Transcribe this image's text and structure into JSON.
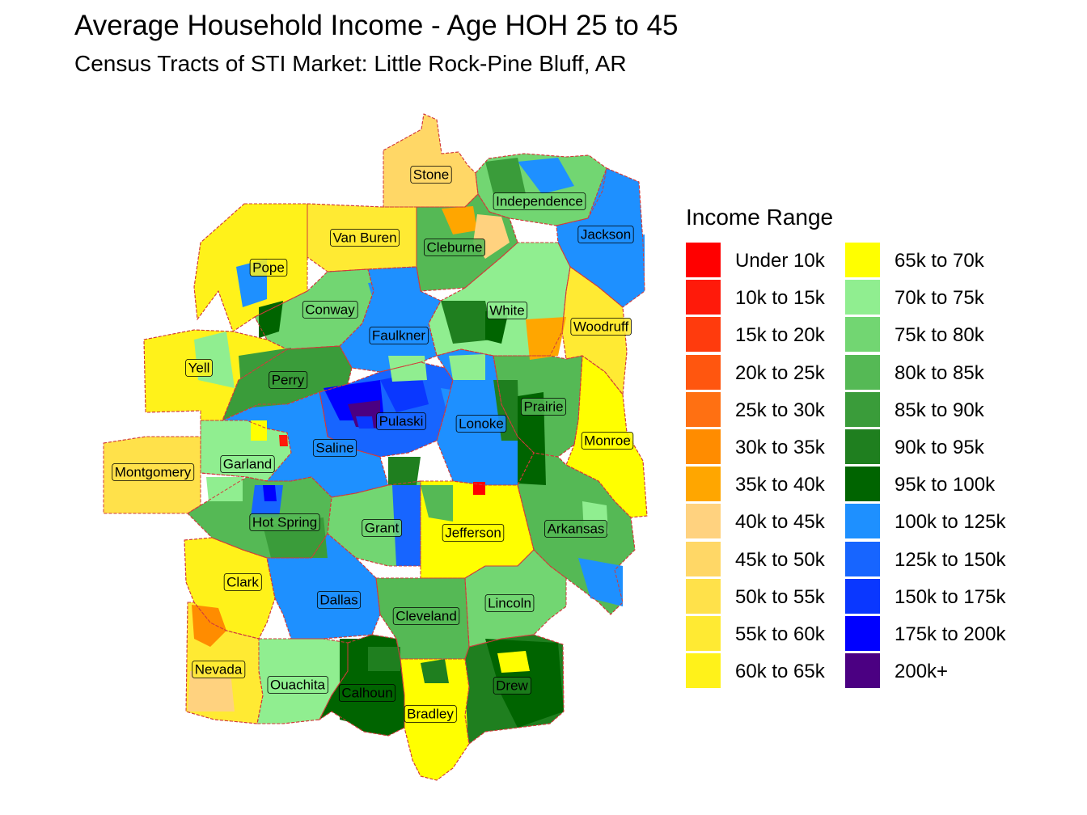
{
  "header": {
    "title": "Average Household Income - Age HOH 25 to 45",
    "subtitle": "Census Tracts of STI Market: Little Rock-Pine Bluff, AR"
  },
  "legend": {
    "title": "Income Range",
    "items": [
      {
        "label": "Under 10k",
        "color": "#ff0000"
      },
      {
        "label": "10k to 15k",
        "color": "#ff1a0a"
      },
      {
        "label": "15k to 20k",
        "color": "#ff3b0d"
      },
      {
        "label": "20k to 25k",
        "color": "#ff560f"
      },
      {
        "label": "25k to 30k",
        "color": "#ff7012"
      },
      {
        "label": "30k to 35k",
        "color": "#ff8c00"
      },
      {
        "label": "35k to 40k",
        "color": "#ffa600"
      },
      {
        "label": "40k to 45k",
        "color": "#ffd27f"
      },
      {
        "label": "45k to 50k",
        "color": "#ffd766"
      },
      {
        "label": "50k to 55k",
        "color": "#ffe14a"
      },
      {
        "label": "55k to 60k",
        "color": "#ffea33"
      },
      {
        "label": "60k to 65k",
        "color": "#fff21a"
      },
      {
        "label": "65k to 70k",
        "color": "#ffff00"
      },
      {
        "label": "70k to 75k",
        "color": "#90ee90"
      },
      {
        "label": "75k to 80k",
        "color": "#72d672"
      },
      {
        "label": "80k to 85k",
        "color": "#55b955"
      },
      {
        "label": "85k to 90k",
        "color": "#3a9c3a"
      },
      {
        "label": "90k to 95k",
        "color": "#1f7f1f"
      },
      {
        "label": "95k to 100k",
        "color": "#006400"
      },
      {
        "label": "100k to 125k",
        "color": "#1e90ff"
      },
      {
        "label": "125k to 150k",
        "color": "#1765ff"
      },
      {
        "label": "150k to 175k",
        "color": "#0a37ff"
      },
      {
        "label": "175k to 200k",
        "color": "#0000ff"
      },
      {
        "label": "200k+",
        "color": "#4b0082"
      }
    ]
  },
  "counties": [
    {
      "name": "Stone",
      "color": "#ffd766"
    },
    {
      "name": "Independence",
      "color": "#72d672"
    },
    {
      "name": "Van Buren",
      "color": "#ffea33"
    },
    {
      "name": "Cleburne",
      "color": "#55b955"
    },
    {
      "name": "Jackson",
      "color": "#1e90ff"
    },
    {
      "name": "Pope",
      "color": "#fff21a"
    },
    {
      "name": "Conway",
      "color": "#72d672"
    },
    {
      "name": "White",
      "color": "#90ee90"
    },
    {
      "name": "Woodruff",
      "color": "#ffea33"
    },
    {
      "name": "Faulkner",
      "color": "#1e90ff"
    },
    {
      "name": "Yell",
      "color": "#fff21a"
    },
    {
      "name": "Perry",
      "color": "#3a9c3a"
    },
    {
      "name": "Prairie",
      "color": "#55b955"
    },
    {
      "name": "Pulaski",
      "color": "#1765ff"
    },
    {
      "name": "Lonoke",
      "color": "#1e90ff"
    },
    {
      "name": "Saline",
      "color": "#1e90ff"
    },
    {
      "name": "Monroe",
      "color": "#ffff00"
    },
    {
      "name": "Garland",
      "color": "#90ee90"
    },
    {
      "name": "Montgomery",
      "color": "#ffe14a"
    },
    {
      "name": "Hot Spring",
      "color": "#55b955"
    },
    {
      "name": "Grant",
      "color": "#72d672"
    },
    {
      "name": "Jefferson",
      "color": "#ffff00"
    },
    {
      "name": "Arkansas",
      "color": "#55b955"
    },
    {
      "name": "Clark",
      "color": "#fff21a"
    },
    {
      "name": "Dallas",
      "color": "#1e90ff"
    },
    {
      "name": "Cleveland",
      "color": "#55b955"
    },
    {
      "name": "Lincoln",
      "color": "#72d672"
    },
    {
      "name": "Nevada",
      "color": "#ffea33"
    },
    {
      "name": "Ouachita",
      "color": "#90ee90"
    },
    {
      "name": "Calhoun",
      "color": "#006400"
    },
    {
      "name": "Bradley",
      "color": "#ffff00"
    },
    {
      "name": "Drew",
      "color": "#1f7f1f"
    }
  ]
}
